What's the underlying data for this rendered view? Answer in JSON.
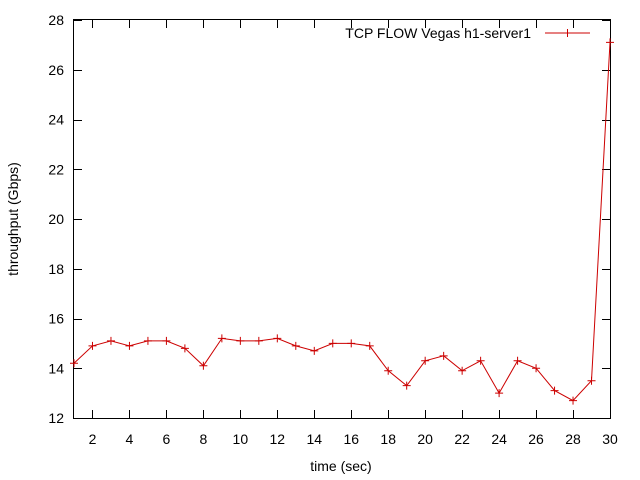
{
  "chart_data": {
    "type": "line",
    "title": "",
    "xlabel": "time (sec)",
    "ylabel": "throughput (Gbps)",
    "xlim": [
      1,
      30
    ],
    "ylim": [
      12,
      28
    ],
    "x_ticks": [
      2,
      4,
      6,
      8,
      10,
      12,
      14,
      16,
      18,
      20,
      22,
      24,
      26,
      28,
      30
    ],
    "y_ticks": [
      12,
      14,
      16,
      18,
      20,
      22,
      24,
      26,
      28
    ],
    "grid": false,
    "legend_position": "top-right",
    "series": [
      {
        "name": "TCP FLOW Vegas h1-server1",
        "color": "#cc0000",
        "marker": "plus",
        "x": [
          1,
          2,
          3,
          4,
          5,
          6,
          7,
          8,
          9,
          10,
          11,
          12,
          13,
          14,
          15,
          16,
          17,
          18,
          19,
          20,
          21,
          22,
          23,
          24,
          25,
          26,
          27,
          28,
          29,
          30
        ],
        "y": [
          14.2,
          14.9,
          15.1,
          14.9,
          15.1,
          15.1,
          14.8,
          14.1,
          15.2,
          15.1,
          15.1,
          15.2,
          14.9,
          14.7,
          15.0,
          15.0,
          14.9,
          13.9,
          13.3,
          14.3,
          14.5,
          13.9,
          14.3,
          13.0,
          14.3,
          14.0,
          13.1,
          12.7,
          13.5,
          27.1
        ]
      }
    ]
  }
}
